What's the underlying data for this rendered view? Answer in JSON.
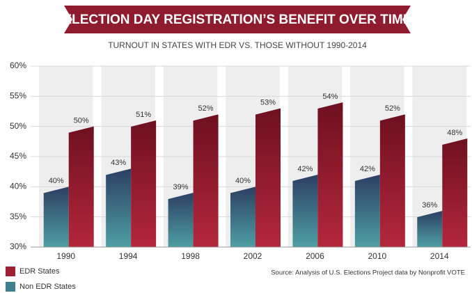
{
  "chart_data": {
    "type": "bar",
    "title": "ELECTION DAY REGISTRATION’S BENEFIT OVER TIME",
    "subtitle": "TURNOUT IN STATES WITH EDR VS. THOSE WITHOUT 1990-2014",
    "source": "Source: Analysis of U.S. Elections Project data by Nonprofit VOTE",
    "categories": [
      "1990",
      "1994",
      "1998",
      "2002",
      "2006",
      "2010",
      "2014"
    ],
    "series": [
      {
        "name": "Non EDR States",
        "color": "#3f7f8e",
        "values": [
          40,
          43,
          39,
          40,
          42,
          42,
          36
        ],
        "value_labels": [
          "40%",
          "43%",
          "39%",
          "40%",
          "42%",
          "42%",
          "36%"
        ]
      },
      {
        "name": "EDR States",
        "color": "#9e1f32",
        "values": [
          50,
          51,
          52,
          53,
          54,
          52,
          48
        ],
        "value_labels": [
          "50%",
          "51%",
          "52%",
          "53%",
          "54%",
          "52%",
          "48%"
        ]
      }
    ],
    "ylim": [
      30,
      60
    ],
    "yticks": [
      {
        "value": 30,
        "label": "30%"
      },
      {
        "value": 35,
        "label": "35%"
      },
      {
        "value": 40,
        "label": "40%"
      },
      {
        "value": 45,
        "label": "45%"
      },
      {
        "value": 50,
        "label": "50%"
      },
      {
        "value": 55,
        "label": "55%"
      },
      {
        "value": 60,
        "label": "60%"
      }
    ],
    "grid": true,
    "legend": "bottom-left"
  }
}
